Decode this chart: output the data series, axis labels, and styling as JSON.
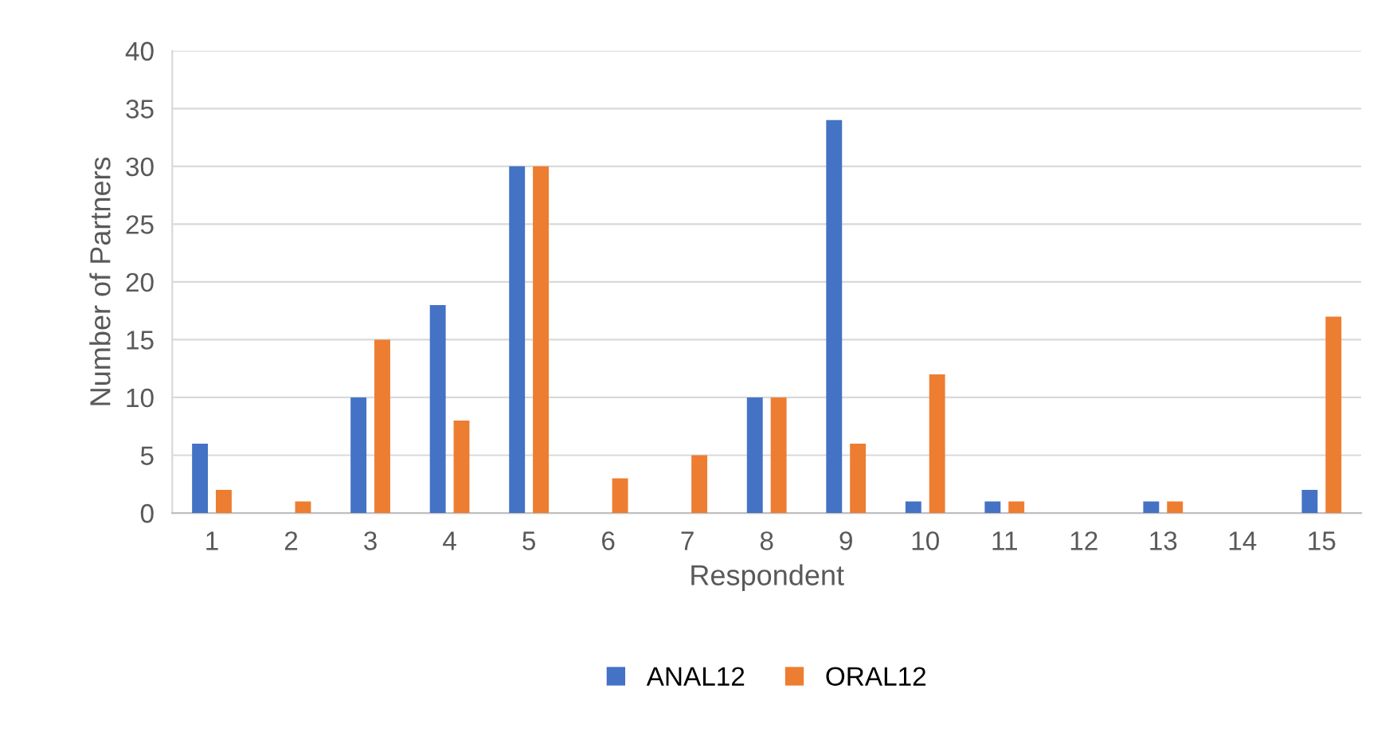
{
  "chart_data": {
    "type": "bar",
    "xlabel": "Respondent",
    "ylabel": "Number of Partners",
    "categories": [
      "1",
      "2",
      "3",
      "4",
      "5",
      "6",
      "7",
      "8",
      "9",
      "10",
      "11",
      "12",
      "13",
      "14",
      "15"
    ],
    "series": [
      {
        "name": "ANAL12",
        "color": "#4472c4",
        "values": [
          6,
          0,
          10,
          18,
          30,
          0,
          0,
          10,
          34,
          1,
          1,
          0,
          1,
          0,
          2
        ]
      },
      {
        "name": "ORAL12",
        "color": "#ed7d31",
        "values": [
          2,
          1,
          15,
          8,
          30,
          3,
          5,
          10,
          6,
          12,
          1,
          0,
          1,
          0,
          17
        ]
      }
    ],
    "ylim": [
      0,
      40
    ],
    "yticks": [
      0,
      5,
      10,
      15,
      20,
      25,
      30,
      35,
      40
    ],
    "grid": "y",
    "legend": "bottom"
  }
}
